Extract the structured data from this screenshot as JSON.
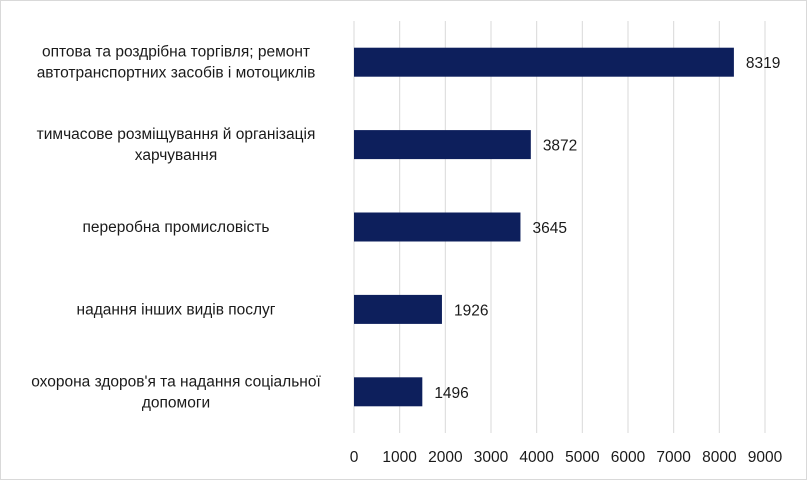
{
  "chart_data": {
    "type": "bar",
    "orientation": "horizontal",
    "categories": [
      [
        "оптова та роздрібна торгівля; ремонт",
        "автотранспортних засобів і мотоциклів"
      ],
      [
        "тимчасове розміщування й організація",
        "харчування"
      ],
      [
        "переробна промисловість"
      ],
      [
        "надання інших видів послуг"
      ],
      [
        "охорона здоров'я та надання соціальної",
        "допомоги"
      ]
    ],
    "values": [
      8319,
      3872,
      3645,
      1926,
      1496
    ],
    "value_labels": [
      "8319",
      "3872",
      "3645",
      "1926",
      "1496"
    ],
    "xlim": [
      0,
      9000
    ],
    "xticks": [
      "0",
      "1000",
      "2000",
      "3000",
      "4000",
      "5000",
      "6000",
      "7000",
      "8000",
      "9000"
    ],
    "grid": true,
    "bar_color": "#0d1f5c",
    "title": "",
    "xlabel": "",
    "ylabel": ""
  }
}
